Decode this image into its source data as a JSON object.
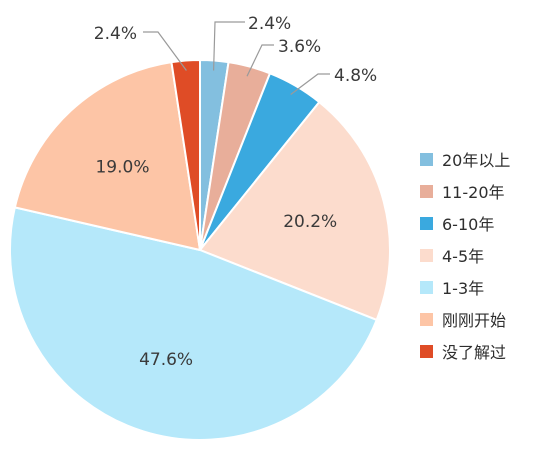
{
  "chart_data": {
    "type": "pie",
    "title": "",
    "legend_position": "right",
    "series": [
      {
        "name": "20年以上",
        "value": 2.4,
        "label": "2.4%",
        "color": "#83bfdf"
      },
      {
        "name": "11-20年",
        "value": 3.6,
        "label": "3.6%",
        "color": "#e8ae9a"
      },
      {
        "name": "6-10年",
        "value": 4.8,
        "label": "4.8%",
        "color": "#3aa9df"
      },
      {
        "name": "4-5年",
        "value": 20.2,
        "label": "20.2%",
        "color": "#fcdccd"
      },
      {
        "name": "1-3年",
        "value": 47.6,
        "label": "47.6%",
        "color": "#b5e8fa"
      },
      {
        "name": "刚刚开始",
        "value": 19.0,
        "label": "19.0%",
        "color": "#fdc5a6"
      },
      {
        "name": "没了解过",
        "value": 2.4,
        "label": "2.4%",
        "color": "#df4c26"
      }
    ]
  }
}
